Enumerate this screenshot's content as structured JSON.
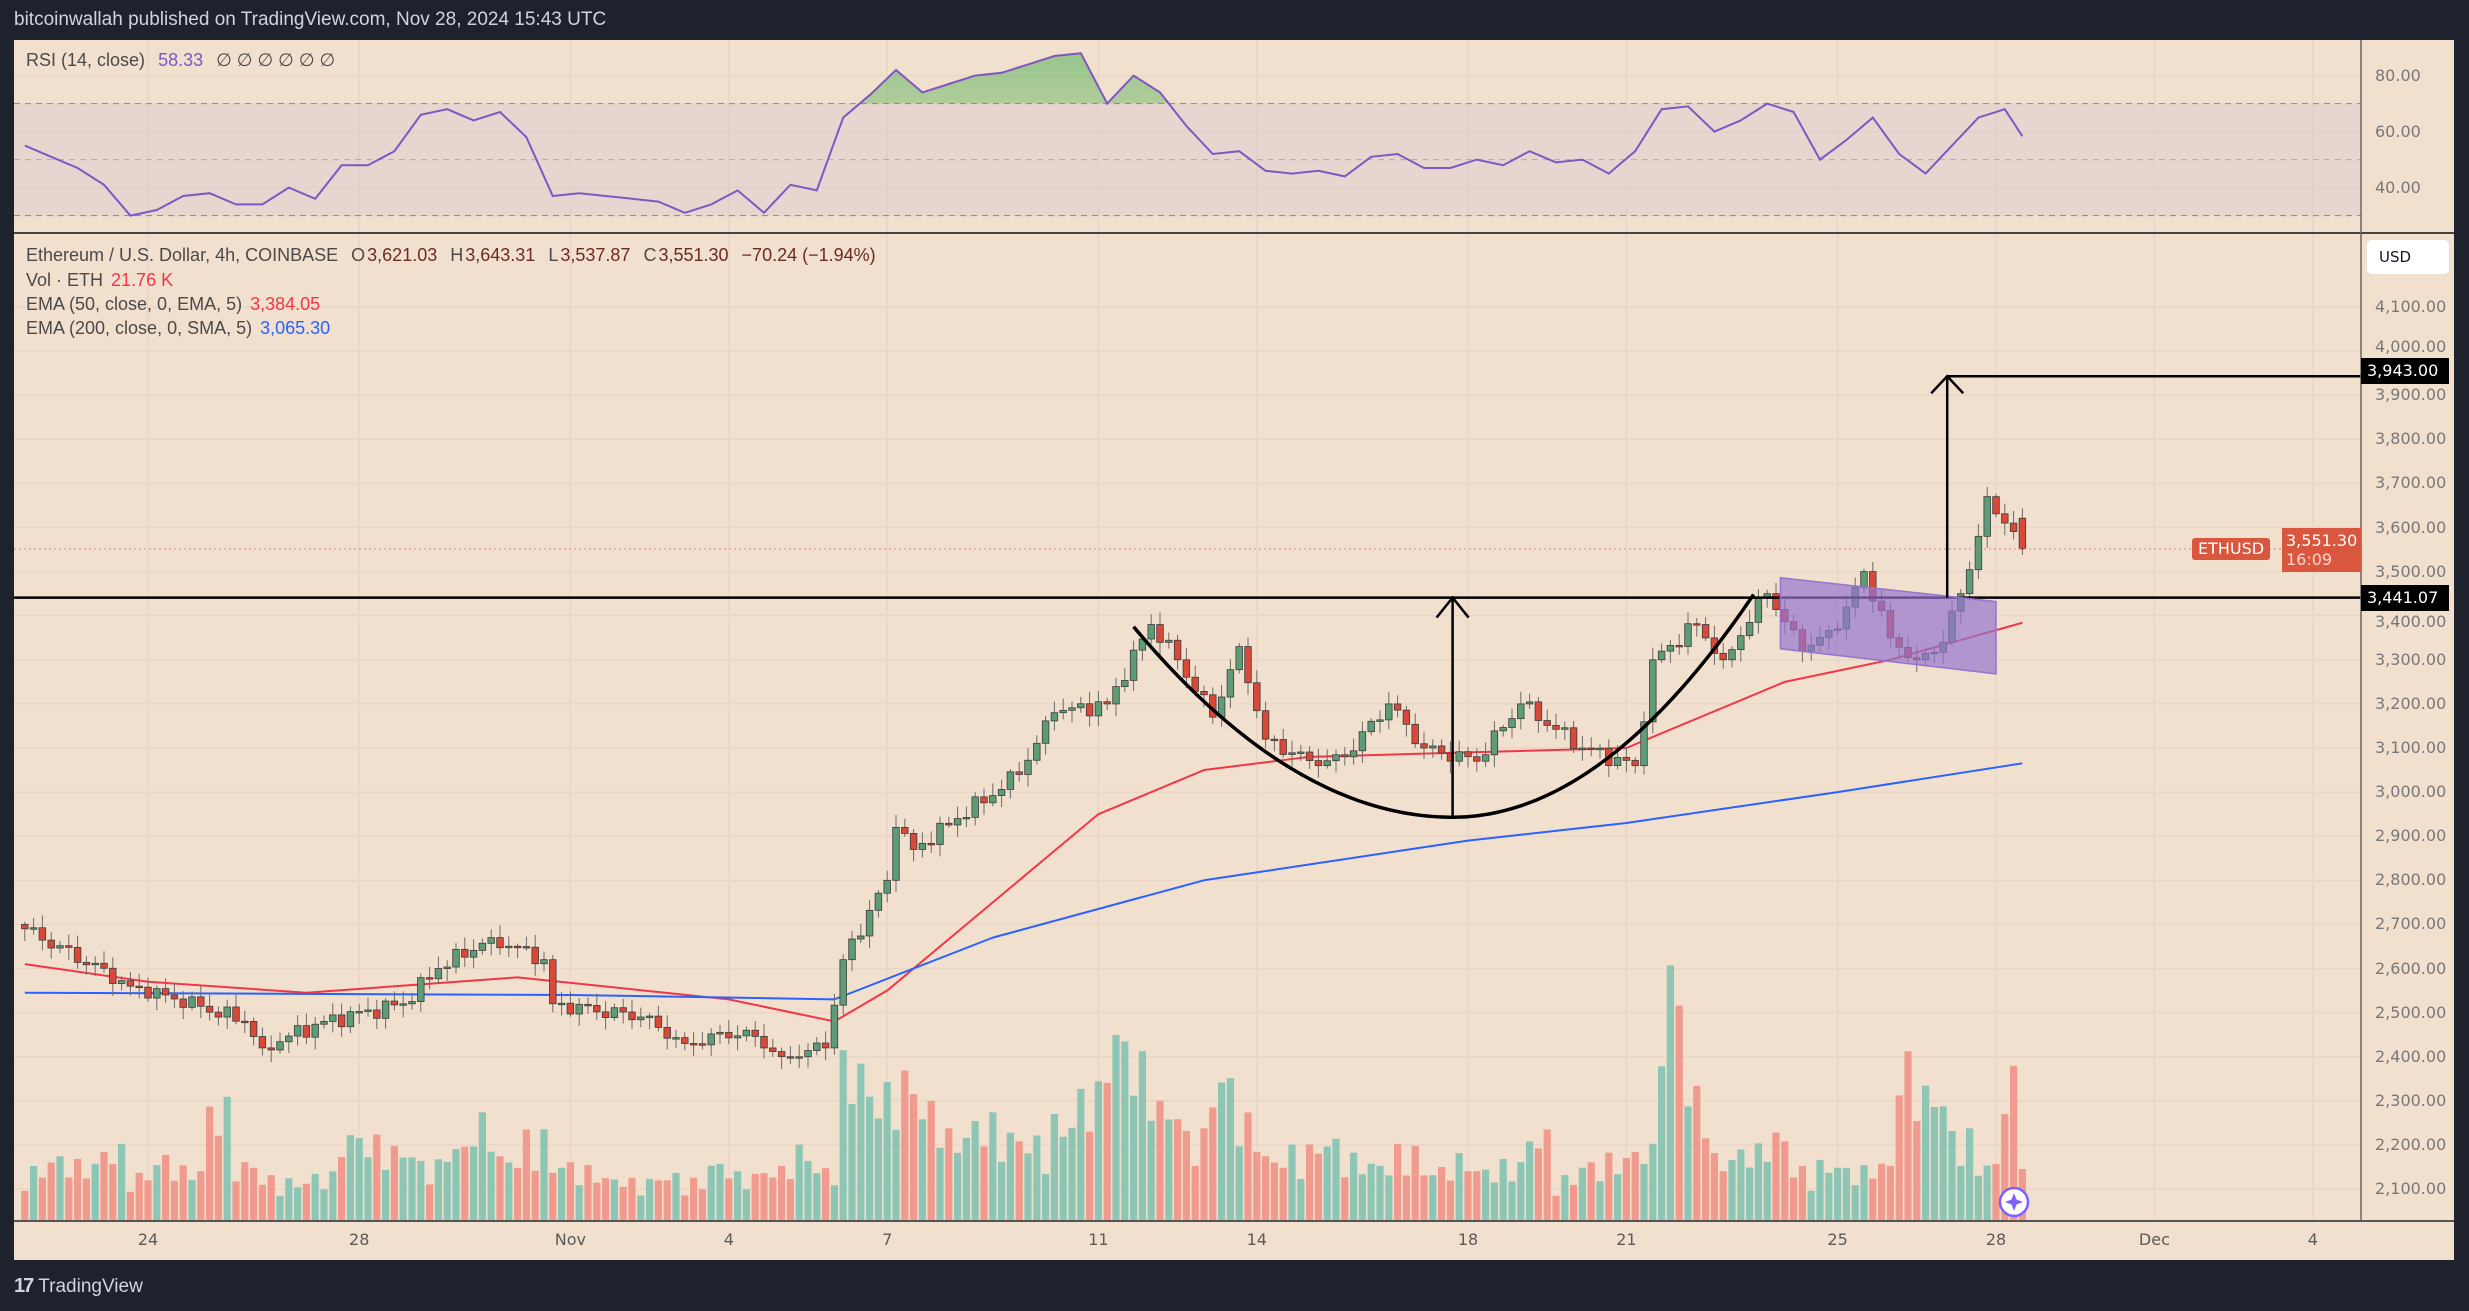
{
  "header": {
    "publisher_line": "bitcoinwallah published on TradingView.com, Nov 28, 2024 15:43 UTC"
  },
  "rsi_legend": {
    "name": "RSI (14, close)",
    "value": "58.33",
    "extras": "∅ ∅ ∅ ∅ ∅ ∅"
  },
  "legend": {
    "symbol": "Ethereum / U.S. Dollar, 4h, COINBASE",
    "o_label": "O",
    "open": "3,621.03",
    "h_label": "H",
    "high": "3,643.31",
    "l_label": "L",
    "low": "3,537.87",
    "c_label": "C",
    "close": "3,551.30",
    "change": "−70.24 (−1.94%)",
    "vol_label": "Vol · ETH",
    "vol_value": "21.76 K",
    "ema50_label": "EMA (50, close, 0, EMA, 5)",
    "ema50_value": "3,384.05",
    "ema200_label": "EMA (200, close, 0, SMA, 5)",
    "ema200_value": "3,065.30"
  },
  "currency_button": "USD",
  "price_axis": [
    "4,100.00",
    "4,000.00",
    "3,900.00",
    "3,800.00",
    "3,700.00",
    "3,600.00",
    "3,500.00",
    "3,400.00",
    "3,300.00",
    "3,200.00",
    "3,100.00",
    "3,000.00",
    "2,900.00",
    "2,800.00",
    "2,700.00",
    "2,600.00",
    "2,500.00",
    "2,400.00",
    "2,300.00",
    "2,200.00",
    "2,100.00"
  ],
  "rsi_axis": [
    "80.00",
    "60.00",
    "40.00"
  ],
  "time_axis": [
    {
      "label": "24",
      "t": "2024-10-24"
    },
    {
      "label": "28",
      "t": "2024-10-28"
    },
    {
      "label": "Nov",
      "t": "2024-11-01"
    },
    {
      "label": "4",
      "t": "2024-11-04"
    },
    {
      "label": "7",
      "t": "2024-11-07"
    },
    {
      "label": "11",
      "t": "2024-11-11"
    },
    {
      "label": "14",
      "t": "2024-11-14"
    },
    {
      "label": "18",
      "t": "2024-11-18"
    },
    {
      "label": "21",
      "t": "2024-11-21"
    },
    {
      "label": "25",
      "t": "2024-11-25"
    },
    {
      "label": "28",
      "t": "2024-11-28"
    },
    {
      "label": "Dec",
      "t": "2024-12-01"
    },
    {
      "label": "4",
      "t": "2024-12-04"
    }
  ],
  "levels": {
    "target": "3,943.00",
    "neckline": "3,441.07"
  },
  "last_price": {
    "symbol": "ETHUSD",
    "price": "3,551.30",
    "countdown": "16:09"
  },
  "colors": {
    "up": "#5d9c76",
    "down": "#d9493a",
    "vol_up": "#8ec6b6",
    "vol_down": "#f19b8e",
    "ema50": "#f23645",
    "ema200": "#2962ff",
    "rsi": "#7e57c2",
    "background": "#f2e0cf",
    "pattern_box": "#9575cd"
  },
  "brand": "TradingView",
  "chart_data": {
    "type": "candlestick",
    "interval": "4h",
    "first_candle": "2024-10-21 16:00",
    "last_candle": "2024-11-28 12:00",
    "last_ohlc": {
      "o": 3621.03,
      "h": 3643.31,
      "l": 3537.87,
      "c": 3551.3
    },
    "close_anchors": [
      [
        "2024-10-21 16:00",
        2690
      ],
      [
        "2024-10-23 16:00",
        2560
      ],
      [
        "2024-10-24 08:00",
        2540
      ],
      [
        "2024-10-25 20:00",
        2480
      ],
      [
        "2024-10-26 04:00",
        2420
      ],
      [
        "2024-10-27 08:00",
        2480
      ],
      [
        "2024-10-28 20:00",
        2520
      ],
      [
        "2024-10-29 12:00",
        2600
      ],
      [
        "2024-10-30 12:00",
        2670
      ],
      [
        "2024-10-31 12:00",
        2620
      ],
      [
        "2024-10-31 16:00",
        2520
      ],
      [
        "2024-11-02 08:00",
        2490
      ],
      [
        "2024-11-03 04:00",
        2430
      ],
      [
        "2024-11-04 08:00",
        2460
      ],
      [
        "2024-11-05 00:00",
        2400
      ],
      [
        "2024-11-05 20:00",
        2420
      ],
      [
        "2024-11-06 04:00",
        2620
      ],
      [
        "2024-11-07 00:00",
        2800
      ],
      [
        "2024-11-07 04:00",
        2920
      ],
      [
        "2024-11-07 12:00",
        2870
      ],
      [
        "2024-11-08 08:00",
        2940
      ],
      [
        "2024-11-09 12:00",
        3040
      ],
      [
        "2024-11-10 04:00",
        3180
      ],
      [
        "2024-11-11 04:00",
        3200
      ],
      [
        "2024-11-12 00:00",
        3380
      ],
      [
        "2024-11-12 12:00",
        3300
      ],
      [
        "2024-11-13 04:00",
        3170
      ],
      [
        "2024-11-13 16:00",
        3330
      ],
      [
        "2024-11-14 04:00",
        3120
      ],
      [
        "2024-11-15 04:00",
        3060
      ],
      [
        "2024-11-15 16:00",
        3080
      ],
      [
        "2024-11-16 12:00",
        3200
      ],
      [
        "2024-11-17 04:00",
        3100
      ],
      [
        "2024-11-18 04:00",
        3070
      ],
      [
        "2024-11-19 00:00",
        3200
      ],
      [
        "2024-11-20 04:00",
        3100
      ],
      [
        "2024-11-21 04:00",
        3060
      ],
      [
        "2024-11-21 12:00",
        3300
      ],
      [
        "2024-11-22 08:00",
        3380
      ],
      [
        "2024-11-22 20:00",
        3300
      ],
      [
        "2024-11-23 16:00",
        3450
      ],
      [
        "2024-11-24 08:00",
        3320
      ],
      [
        "2024-11-25 00:00",
        3370
      ],
      [
        "2024-11-25 12:00",
        3500
      ],
      [
        "2024-11-26 00:00",
        3350
      ],
      [
        "2024-11-26 12:00",
        3300
      ],
      [
        "2024-11-27 00:00",
        3340
      ],
      [
        "2024-11-27 08:00",
        3450
      ],
      [
        "2024-11-27 16:00",
        3580
      ],
      [
        "2024-11-27 20:00",
        3670
      ],
      [
        "2024-11-28 04:00",
        3610
      ],
      [
        "2024-11-28 12:00",
        3551.3
      ]
    ],
    "ema50": [
      [
        "2024-10-21 16:00",
        2610
      ],
      [
        "2024-10-24 00:00",
        2570
      ],
      [
        "2024-10-27 00:00",
        2545
      ],
      [
        "2024-10-31 00:00",
        2580
      ],
      [
        "2024-11-04 00:00",
        2530
      ],
      [
        "2024-11-06 00:00",
        2480
      ],
      [
        "2024-11-07 00:00",
        2550
      ],
      [
        "2024-11-09 00:00",
        2750
      ],
      [
        "2024-11-11 00:00",
        2950
      ],
      [
        "2024-11-13 00:00",
        3050
      ],
      [
        "2024-11-15 00:00",
        3080
      ],
      [
        "2024-11-18 00:00",
        3090
      ],
      [
        "2024-11-21 00:00",
        3100
      ],
      [
        "2024-11-24 00:00",
        3250
      ],
      [
        "2024-11-26 00:00",
        3300
      ],
      [
        "2024-11-28 12:00",
        3384.05
      ]
    ],
    "ema200": [
      [
        "2024-10-21 16:00",
        2545
      ],
      [
        "2024-11-01 00:00",
        2540
      ],
      [
        "2024-11-06 00:00",
        2530
      ],
      [
        "2024-11-09 00:00",
        2670
      ],
      [
        "2024-11-13 00:00",
        2800
      ],
      [
        "2024-11-18 00:00",
        2890
      ],
      [
        "2024-11-21 00:00",
        2930
      ],
      [
        "2024-11-25 00:00",
        3000
      ],
      [
        "2024-11-28 12:00",
        3065.3
      ]
    ],
    "volume_12h_k": [
      18,
      22,
      20,
      25,
      16,
      22,
      18,
      40,
      20,
      15,
      14,
      16,
      30,
      28,
      25,
      20,
      26,
      35,
      22,
      30,
      20,
      18,
      15,
      14,
      16,
      14,
      20,
      16,
      18,
      25,
      18,
      55,
      45,
      50,
      40,
      30,
      35,
      30,
      28,
      35,
      45,
      65,
      55,
      40,
      30,
      50,
      35,
      22,
      25,
      28,
      22,
      20,
      25,
      18,
      22,
      18,
      20,
      30,
      15,
      20,
      22,
      25,
      85,
      45,
      22,
      25,
      30,
      18,
      20,
      18,
      20,
      55,
      45,
      30,
      20,
      50,
      55,
      22
    ],
    "rsi_12h": [
      55,
      51,
      47,
      41,
      30,
      32,
      37,
      38,
      34,
      34,
      40,
      36,
      48,
      48,
      53,
      66,
      68,
      64,
      67,
      58,
      37,
      38,
      37,
      36,
      35,
      31,
      34,
      39,
      31,
      41,
      39,
      65,
      73,
      82,
      74,
      77,
      80,
      81,
      84,
      87,
      88,
      70,
      80,
      74,
      62,
      52,
      53,
      46,
      45,
      46,
      44,
      51,
      52,
      47,
      47,
      50,
      48,
      53,
      49,
      50,
      45,
      53,
      68,
      69,
      60,
      64,
      70,
      67,
      50,
      57,
      65,
      52,
      45,
      55,
      65,
      68,
      58.33
    ],
    "rsi_range": [
      0,
      100
    ],
    "rsi_bands": [
      30,
      70
    ]
  }
}
